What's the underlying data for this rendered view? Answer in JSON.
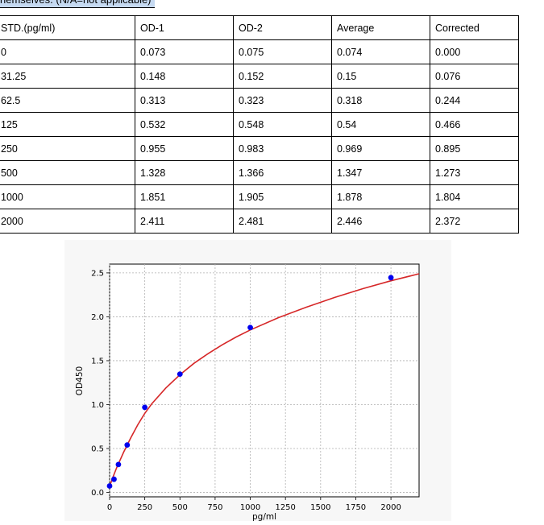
{
  "note": "hemselves. (N/A=not applicable)",
  "table": {
    "headers": [
      "STD.(pg/ml)",
      "OD-1",
      "OD-2",
      "Average",
      "Corrected"
    ],
    "rows": [
      [
        "0",
        "0.073",
        "0.075",
        "0.074",
        "0.000"
      ],
      [
        "31.25",
        "0.148",
        "0.152",
        "0.15",
        "0.076"
      ],
      [
        "62.5",
        "0.313",
        "0.323",
        "0.318",
        "0.244"
      ],
      [
        "125",
        "0.532",
        "0.548",
        "0.54",
        "0.466"
      ],
      [
        "250",
        "0.955",
        "0.983",
        "0.969",
        "0.895"
      ],
      [
        "500",
        "1.328",
        "1.366",
        "1.347",
        "1.273"
      ],
      [
        "1000",
        "1.851",
        "1.905",
        "1.878",
        "1.804"
      ],
      [
        "2000",
        "2.411",
        "2.481",
        "2.446",
        "2.372"
      ]
    ]
  },
  "chart_data": {
    "type": "scatter",
    "xlabel": "pg/ml",
    "ylabel": "OD450",
    "xlim": [
      0,
      2200
    ],
    "ylim": [
      -0.05,
      2.6
    ],
    "xticks": [
      0,
      250,
      500,
      750,
      1000,
      1250,
      1500,
      1750,
      2000
    ],
    "xtick_labels": [
      "0",
      "250",
      "500",
      "750",
      "1000",
      "1250",
      "1500",
      "1750",
      "2000"
    ],
    "yticks": [
      0.0,
      0.5,
      1.0,
      1.5,
      2.0,
      2.5
    ],
    "ytick_labels": [
      "0.0",
      "0.5",
      "1.0",
      "1.5",
      "2.0",
      "2.5"
    ],
    "grid": true,
    "points": {
      "x": [
        0,
        31.25,
        62.5,
        125,
        250,
        500,
        1000,
        2000
      ],
      "y": [
        0.074,
        0.15,
        0.318,
        0.54,
        0.969,
        1.347,
        1.878,
        2.446
      ],
      "color": "#0000ee"
    },
    "fit_curve": {
      "color": "#d62728",
      "x": [
        0,
        25,
        50,
        75,
        100,
        150,
        200,
        250,
        300,
        400,
        500,
        600,
        700,
        800,
        900,
        1000,
        1200,
        1400,
        1600,
        1800,
        2000,
        2200
      ],
      "y": [
        0.07,
        0.18,
        0.28,
        0.37,
        0.46,
        0.62,
        0.77,
        0.9,
        1.01,
        1.19,
        1.34,
        1.47,
        1.58,
        1.68,
        1.77,
        1.85,
        1.99,
        2.11,
        2.22,
        2.32,
        2.41,
        2.49
      ]
    }
  }
}
